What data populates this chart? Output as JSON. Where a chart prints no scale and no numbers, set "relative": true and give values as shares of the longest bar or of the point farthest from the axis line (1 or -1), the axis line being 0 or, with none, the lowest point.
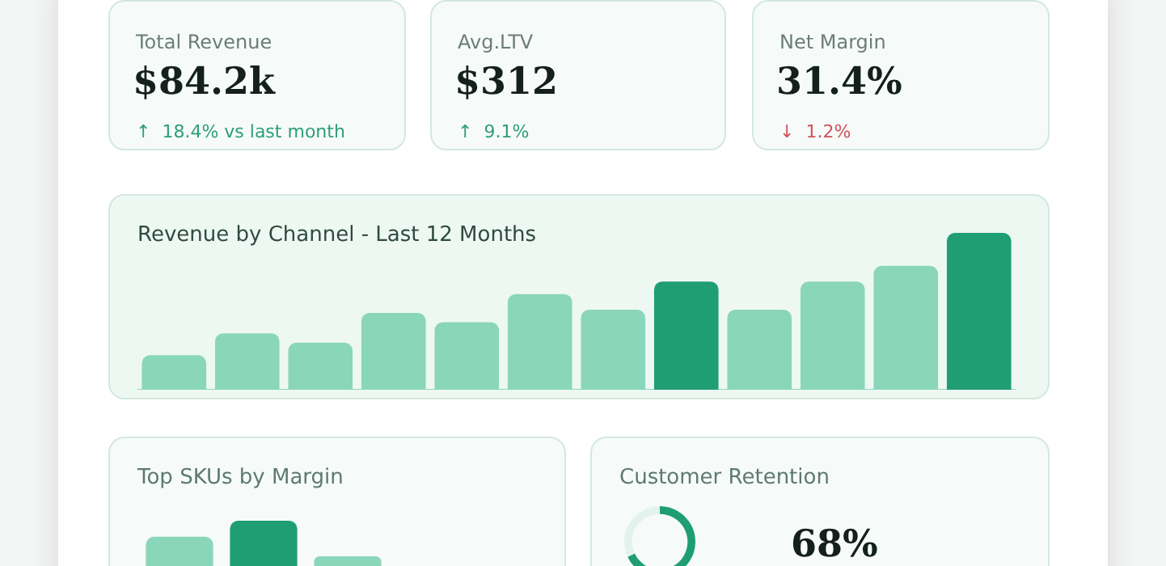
{
  "chart_data": [
    {
      "type": "other",
      "title": "Total Revenue",
      "annotations": [
        "$84.2k",
        "↑  18.4% vs last month"
      ],
      "color": "#2e9e77"
    },
    {
      "type": "other",
      "title": "Avg.LTV",
      "annotations": [
        "$312",
        "↑  9.1%"
      ],
      "color": "#2e9e77"
    },
    {
      "type": "other",
      "title": "Net Margin",
      "annotations": [
        "31.4%",
        "↓  1.2%"
      ],
      "color": "#d0525c"
    },
    {
      "type": "bar",
      "title": "Revenue by Channel - Last 12 Months",
      "relative": true,
      "categories": [
        null,
        null,
        null,
        null,
        null,
        null,
        null,
        null,
        null,
        null,
        null,
        null
      ],
      "values": [
        0.22,
        0.36,
        0.3,
        0.49,
        0.43,
        0.61,
        0.51,
        0.69,
        0.51,
        0.69,
        0.79,
        1
      ],
      "colors": [
        "#8ad6bb",
        "#8ad6bb",
        "#8ad6bb",
        "#8ad6bb",
        "#8ad6bb",
        "#8ad6bb",
        "#8ad6bb",
        "#1f9e74",
        "#8ad6bb",
        "#8ad6bb",
        "#8ad6bb",
        "#1f9e74"
      ]
    },
    {
      "type": "bar",
      "title": "Top SKUs by Margin",
      "relative": true,
      "categories": [
        null,
        null,
        null
      ],
      "values": [
        0.66,
        1,
        0.24
      ],
      "colors": [
        "#8ad6bb",
        "#1f9e74",
        "#8ad6bb"
      ]
    },
    {
      "type": "donut",
      "title": "Customer Retention",
      "categories": [
        null,
        null
      ],
      "values": [
        68,
        32
      ],
      "colors": [
        "#1f9e74",
        "#e3f3ec"
      ],
      "annotations": [
        "68%"
      ]
    }
  ]
}
